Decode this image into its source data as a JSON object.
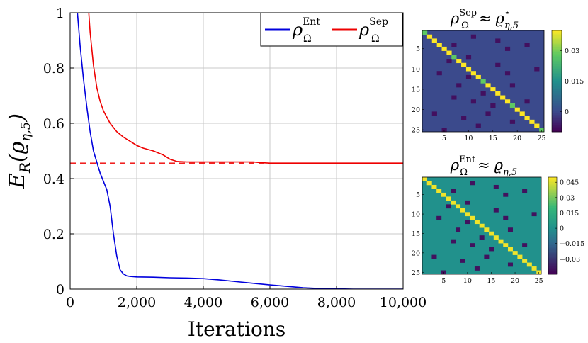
{
  "chart_data": [
    {
      "type": "line",
      "xlabel": "Iterations",
      "ylabel_base": "E",
      "ylabel_sub": "R",
      "ylabel_arg": "(ϱ",
      "ylabel_arg_sub": "η,5",
      "ylabel_close": ")",
      "xlim": [
        0,
        10000
      ],
      "ylim": [
        0,
        1
      ],
      "xticks": [
        0,
        2000,
        4000,
        6000,
        8000,
        10000
      ],
      "xtick_labels": [
        "0",
        "2,000",
        "4,000",
        "6,000",
        "8,000",
        "10,000"
      ],
      "yticks": [
        0,
        0.2,
        0.4,
        0.6,
        0.8,
        1
      ],
      "ytick_labels": [
        "0",
        "0.2",
        "0.4",
        "0.6",
        "0.8",
        "1"
      ],
      "grid": true,
      "legend_position": "top-right",
      "reference_line": {
        "y": 0.456,
        "style": "dashed",
        "color": "#ee0000"
      },
      "series": [
        {
          "name": "ρΩEnt",
          "legend_base": "ρ",
          "legend_sup": "Ent",
          "legend_sub": "Ω",
          "color": "#0000dd",
          "x": [
            220,
            300,
            400,
            500,
            600,
            700,
            800,
            900,
            1000,
            1100,
            1200,
            1300,
            1400,
            1500,
            1600,
            1700,
            1800,
            2000,
            2500,
            3000,
            3500,
            4000,
            4500,
            5000,
            5500,
            6000,
            6500,
            7000,
            7500,
            8000,
            8500,
            9000,
            9500,
            10000
          ],
          "y": [
            1.0,
            0.88,
            0.76,
            0.66,
            0.57,
            0.5,
            0.46,
            0.42,
            0.39,
            0.36,
            0.3,
            0.2,
            0.12,
            0.07,
            0.055,
            0.048,
            0.046,
            0.044,
            0.043,
            0.041,
            0.04,
            0.038,
            0.033,
            0.027,
            0.021,
            0.015,
            0.01,
            0.005,
            0.002,
            0.001,
            0.0,
            0.0,
            0.0,
            0.0
          ]
        },
        {
          "name": "ρΩSep",
          "legend_base": "ρ",
          "legend_sup": "Sep",
          "legend_sub": "Ω",
          "color": "#ee0000",
          "x": [
            560,
            600,
            700,
            800,
            900,
            1000,
            1200,
            1400,
            1600,
            1800,
            2000,
            2200,
            2500,
            2800,
            3000,
            3200,
            3500,
            4000,
            5000,
            5500,
            5700,
            6000,
            7000,
            8000,
            9000,
            10000
          ],
          "y": [
            1.0,
            0.93,
            0.81,
            0.73,
            0.68,
            0.645,
            0.6,
            0.57,
            0.55,
            0.535,
            0.52,
            0.51,
            0.5,
            0.485,
            0.47,
            0.462,
            0.46,
            0.46,
            0.46,
            0.46,
            0.458,
            0.456,
            0.456,
            0.456,
            0.456,
            0.456
          ]
        }
      ]
    },
    {
      "type": "heatmap",
      "title_base": "ρ",
      "title_sup": "Sep",
      "title_sub": "Ω",
      "title_rel": "≈",
      "title_rhs": "ϱ",
      "title_rhs_sup": "⋆",
      "title_rhs_sub": "η,5",
      "size": 25,
      "axis_ticks": [
        5,
        10,
        15,
        20,
        25
      ],
      "colorbar_ticks": [
        0.03,
        0.015,
        0
      ],
      "colorbar_labels": [
        "0.03",
        "0.015",
        "0"
      ],
      "background_value": 0.0,
      "diagonal_value": 0.04,
      "diagonal_secondary_value": 0.028,
      "diagonal_secondary_indices": [
        1,
        7,
        13,
        19,
        25
      ],
      "offdiag_value": -0.008,
      "offdiag_cells": [
        [
          7,
          4
        ],
        [
          16,
          3
        ],
        [
          18,
          5
        ],
        [
          22,
          4
        ],
        [
          11,
          2
        ],
        [
          6,
          8
        ],
        [
          10,
          7
        ],
        [
          16,
          9
        ],
        [
          4,
          11
        ],
        [
          10,
          12
        ],
        [
          18,
          11
        ],
        [
          24,
          10
        ],
        [
          8,
          14
        ],
        [
          13,
          16
        ],
        [
          19,
          14
        ],
        [
          7,
          17
        ],
        [
          11,
          18
        ],
        [
          15,
          19
        ],
        [
          22,
          18
        ],
        [
          3,
          21
        ],
        [
          9,
          22
        ],
        [
          14,
          21
        ],
        [
          19,
          23
        ],
        [
          5,
          25
        ],
        [
          12,
          24
        ]
      ],
      "colorscale": [
        [
          -0.01,
          "#440154"
        ],
        [
          0.0,
          "#3b4a8c"
        ],
        [
          0.015,
          "#21918c"
        ],
        [
          0.028,
          "#5ec962"
        ],
        [
          0.04,
          "#fde725"
        ]
      ]
    },
    {
      "type": "heatmap",
      "title_base": "ρ",
      "title_sup": "Ent",
      "title_sub": "Ω",
      "title_rel": "≈",
      "title_rhs": "ϱ",
      "title_rhs_sup": "",
      "title_rhs_sub": "η,5",
      "size": 25,
      "axis_ticks": [
        5,
        10,
        15,
        20,
        25
      ],
      "colorbar_ticks": [
        0.045,
        0.03,
        0.015,
        0,
        -0.015,
        -0.03
      ],
      "colorbar_labels": [
        "0.045",
        "0.03",
        "0.015",
        "0",
        "−0.015",
        "−0.03"
      ],
      "background_value": 0.0,
      "diagonal_value": 0.048,
      "offdiag_value": -0.04,
      "offdiag_cells": [
        [
          7,
          4
        ],
        [
          16,
          3
        ],
        [
          18,
          5
        ],
        [
          22,
          4
        ],
        [
          11,
          2
        ],
        [
          6,
          8
        ],
        [
          10,
          7
        ],
        [
          16,
          9
        ],
        [
          4,
          11
        ],
        [
          10,
          12
        ],
        [
          18,
          11
        ],
        [
          24,
          10
        ],
        [
          8,
          14
        ],
        [
          13,
          16
        ],
        [
          19,
          14
        ],
        [
          7,
          17
        ],
        [
          11,
          18
        ],
        [
          15,
          19
        ],
        [
          22,
          18
        ],
        [
          3,
          21
        ],
        [
          9,
          22
        ],
        [
          14,
          21
        ],
        [
          19,
          23
        ],
        [
          5,
          25
        ],
        [
          12,
          24
        ]
      ],
      "colorscale": [
        [
          -0.045,
          "#440154"
        ],
        [
          -0.015,
          "#31688e"
        ],
        [
          0.0,
          "#21918c"
        ],
        [
          0.02,
          "#35b779"
        ],
        [
          0.05,
          "#fde725"
        ]
      ]
    }
  ]
}
